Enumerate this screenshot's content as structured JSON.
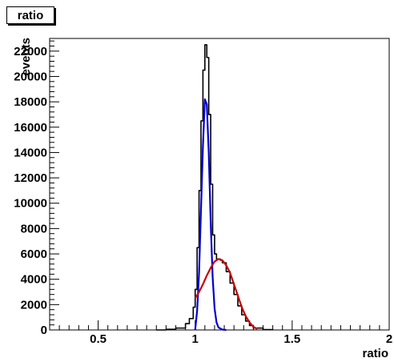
{
  "title": "ratio",
  "chart_data": {
    "type": "line",
    "title": "ratio",
    "xlabel": "ratio",
    "ylabel": "events",
    "xlim": [
      0.25,
      2.0
    ],
    "ylim": [
      0,
      23000
    ],
    "x_ticks": [
      0.5,
      1,
      1.5,
      2
    ],
    "x_tick_labels": [
      "0.5",
      "1",
      "1.5",
      "2"
    ],
    "y_ticks": [
      0,
      2000,
      4000,
      6000,
      8000,
      10000,
      12000,
      14000,
      16000,
      18000,
      20000,
      22000
    ],
    "y_tick_labels": [
      "0",
      "2000",
      "4000",
      "6000",
      "8000",
      "10000",
      "12000",
      "14000",
      "16000",
      "18000",
      "20000",
      "22000"
    ],
    "grid": false,
    "series": [
      {
        "color": "#000000",
        "style": "histogram",
        "x": [
          0.8,
          0.85,
          0.9,
          0.95,
          0.97,
          0.99,
          1.0,
          1.01,
          1.02,
          1.03,
          1.04,
          1.05,
          1.06,
          1.07,
          1.08,
          1.09,
          1.1,
          1.11,
          1.12,
          1.13,
          1.14,
          1.16,
          1.18,
          1.2,
          1.22,
          1.24,
          1.26,
          1.28,
          1.3,
          1.35,
          1.4
        ],
        "values": [
          0,
          50,
          150,
          500,
          900,
          1800,
          3200,
          6500,
          11000,
          16500,
          20500,
          22500,
          21500,
          17000,
          11500,
          7500,
          6000,
          5600,
          5600,
          5500,
          5300,
          4600,
          3700,
          2800,
          1900,
          1200,
          700,
          350,
          150,
          30,
          0
        ]
      },
      {
        "color": "#0000cc",
        "style": "curve",
        "x": [
          1.0,
          1.01,
          1.02,
          1.03,
          1.04,
          1.05,
          1.06,
          1.07,
          1.08,
          1.09,
          1.1,
          1.11,
          1.12,
          1.14,
          1.16
        ],
        "values": [
          0,
          1500,
          4500,
          9500,
          14500,
          18200,
          17800,
          14000,
          8500,
          4200,
          1700,
          600,
          200,
          30,
          0
        ]
      },
      {
        "color": "#cc0000",
        "style": "curve",
        "x": [
          1.0,
          1.02,
          1.04,
          1.06,
          1.08,
          1.1,
          1.12,
          1.14,
          1.16,
          1.18,
          1.2,
          1.22,
          1.24,
          1.26,
          1.28,
          1.3,
          1.32
        ],
        "values": [
          2500,
          3000,
          3600,
          4300,
          4900,
          5400,
          5600,
          5500,
          5100,
          4500,
          3600,
          2700,
          1800,
          1100,
          600,
          250,
          80
        ]
      }
    ]
  }
}
